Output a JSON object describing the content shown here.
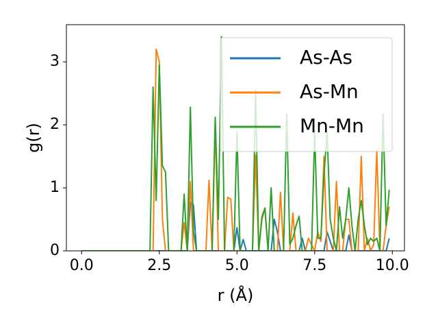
{
  "chart_data": {
    "type": "line",
    "xlabel": "r (Å)",
    "ylabel": "g(r)",
    "x": [
      0,
      0.1,
      0.2,
      0.3,
      0.4,
      0.5,
      0.6,
      0.7,
      0.8,
      0.9,
      1,
      1.1,
      1.2,
      1.3,
      1.4,
      1.5,
      1.6,
      1.7,
      1.8,
      1.9,
      2,
      2.1,
      2.2,
      2.3,
      2.4,
      2.5,
      2.6,
      2.7,
      2.8,
      2.9,
      3,
      3.1,
      3.2,
      3.3,
      3.4,
      3.5,
      3.6,
      3.7,
      3.8,
      3.9,
      4,
      4.1,
      4.2,
      4.3,
      4.4,
      4.5,
      4.6,
      4.7,
      4.8,
      4.9,
      5,
      5.1,
      5.2,
      5.3,
      5.4,
      5.5,
      5.6,
      5.7,
      5.8,
      5.9,
      6,
      6.1,
      6.2,
      6.3,
      6.4,
      6.5,
      6.6,
      6.7,
      6.8,
      6.9,
      7,
      7.1,
      7.2,
      7.3,
      7.4,
      7.5,
      7.6,
      7.7,
      7.8,
      7.9,
      8,
      8.1,
      8.2,
      8.3,
      8.4,
      8.5,
      8.6,
      8.7,
      8.8,
      8.9,
      9,
      9.1,
      9.2,
      9.3,
      9.4,
      9.5,
      9.6,
      9.7,
      9.8,
      9.9
    ],
    "series": [
      {
        "name": "As-As",
        "color": "#1f77b4",
        "values": [
          0,
          0,
          0,
          0,
          0,
          0,
          0,
          0,
          0,
          0,
          0,
          0,
          0,
          0,
          0,
          0,
          0,
          0,
          0,
          0,
          0,
          0,
          0,
          0,
          0,
          0,
          0,
          0,
          0,
          0,
          0,
          0,
          0,
          0,
          0,
          0.77,
          0.73,
          0,
          0,
          0,
          0,
          0,
          0,
          0,
          0,
          0,
          0,
          0,
          0,
          0,
          0.37,
          0,
          0.18,
          0,
          0,
          0,
          0,
          0,
          0,
          0,
          0,
          0,
          0.5,
          0.3,
          0,
          0,
          0,
          0,
          0,
          0,
          0,
          0.2,
          0,
          0,
          0,
          0,
          0,
          0,
          0,
          0.3,
          0.15,
          0,
          0,
          0,
          0,
          0,
          0.25,
          0,
          0,
          0,
          0,
          0,
          0,
          0,
          0,
          0,
          0,
          0,
          0,
          0.2
        ]
      },
      {
        "name": "As-Mn",
        "color": "#ff7f0e",
        "values": [
          0,
          0,
          0,
          0,
          0,
          0,
          0,
          0,
          0,
          0,
          0,
          0,
          0,
          0,
          0,
          0,
          0,
          0,
          0,
          0,
          0,
          0,
          0,
          0,
          3.2,
          3.0,
          0.5,
          0,
          0,
          0,
          0,
          0,
          0,
          0.45,
          0,
          1.1,
          0,
          0,
          0,
          0,
          0,
          1.12,
          0,
          2.02,
          0,
          0,
          0,
          0.85,
          0.82,
          0,
          0,
          0,
          0,
          0,
          0,
          0,
          1.52,
          0,
          0.55,
          0.68,
          0,
          0,
          0,
          0,
          0.93,
          0,
          0,
          0,
          0.6,
          0,
          0,
          0,
          0,
          0.2,
          0.1,
          0,
          0.3,
          0.15,
          1.5,
          0,
          0,
          0,
          1.1,
          0,
          0,
          0.5,
          0.5,
          0,
          0,
          0,
          1.5,
          0,
          0.2,
          0,
          0.1,
          1.6,
          0,
          0,
          0.4,
          0.7
        ]
      },
      {
        "name": "Mn-Mn",
        "color": "#2ca02c",
        "values": [
          0,
          0,
          0,
          0,
          0,
          0,
          0,
          0,
          0,
          0,
          0,
          0,
          0,
          0,
          0,
          0,
          0,
          0,
          0,
          0,
          0,
          0,
          0,
          2.6,
          0.8,
          2.95,
          1.35,
          1.25,
          0,
          0,
          0,
          0,
          0,
          0.9,
          0,
          2.28,
          0.3,
          0,
          0,
          0,
          0,
          0,
          0,
          2.12,
          0.5,
          3.4,
          0,
          0,
          0,
          0,
          1.88,
          0,
          0,
          0,
          0,
          0,
          2.55,
          0,
          0.5,
          0.68,
          0,
          1.0,
          0,
          0,
          0,
          0,
          2.17,
          0.1,
          0.2,
          0.4,
          0.55,
          0,
          0,
          0,
          0,
          1.9,
          0.2,
          0.2,
          1.2,
          1.88,
          0.5,
          0.2,
          0,
          0.7,
          0.2,
          0.5,
          1.0,
          0.4,
          0,
          0.5,
          0.8,
          0.4,
          0.1,
          0.2,
          0.15,
          0.2,
          0,
          2.17,
          0.4,
          0.97
        ]
      }
    ],
    "xlim": [
      -0.49,
      10.39
    ],
    "ylim": [
      0,
      3.59
    ],
    "xticks": [
      {
        "value": 0,
        "label": "0.0"
      },
      2.5,
      {
        "value": 5,
        "label": "5.0"
      },
      7.5,
      {
        "value": 10,
        "label": "10.0"
      }
    ],
    "yticks": [
      0,
      1,
      2,
      3
    ],
    "legend": "upper right"
  }
}
